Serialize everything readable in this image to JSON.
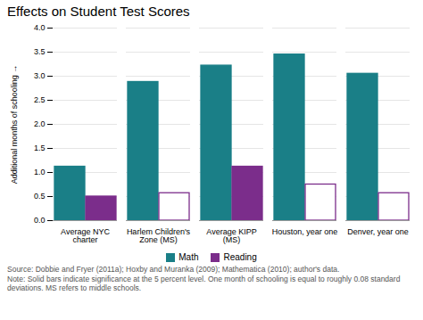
{
  "chart_data": {
    "type": "bar",
    "title": "Effects on Student Test Scores",
    "ylabel": "Additional months of schooling",
    "categories": [
      "Average NYC\ncharter",
      "Harlem Children's\nZone (MS)",
      "Average KIPP\n(MS)",
      "Houston, year one",
      "Denver, year one"
    ],
    "series": [
      {
        "name": "Math",
        "color": "#1a7f87",
        "values": [
          1.12,
          2.88,
          3.22,
          3.45,
          3.05
        ]
      },
      {
        "name": "Reading",
        "color": "#7b2d8b",
        "values": [
          0.5,
          0.57,
          1.12,
          0.75,
          0.57
        ],
        "solid": [
          true,
          false,
          true,
          false,
          false
        ]
      }
    ],
    "ylim": [
      0,
      4.0
    ],
    "yticks": [
      {
        "value": 0.0,
        "label": "0.0"
      },
      0.5,
      {
        "value": 1.0,
        "label": "1.0"
      },
      1.5,
      {
        "value": 2.0,
        "label": "2.0"
      },
      2.5,
      {
        "value": 3.0,
        "label": "3.0"
      },
      3.5,
      {
        "value": 4.0,
        "label": "4.0"
      }
    ],
    "grid": true,
    "legend": "bottom",
    "annotations": [
      "Source: Dobbie and Fryer (2011a); Hoxby and Muranka (2009); Mathematica (2010); author's data.",
      "Note: Solid bars indicate significance at the 5 percent level. One month of schooling is equal to roughly 0.08 standard deviations. MS refers to middle schools."
    ]
  }
}
